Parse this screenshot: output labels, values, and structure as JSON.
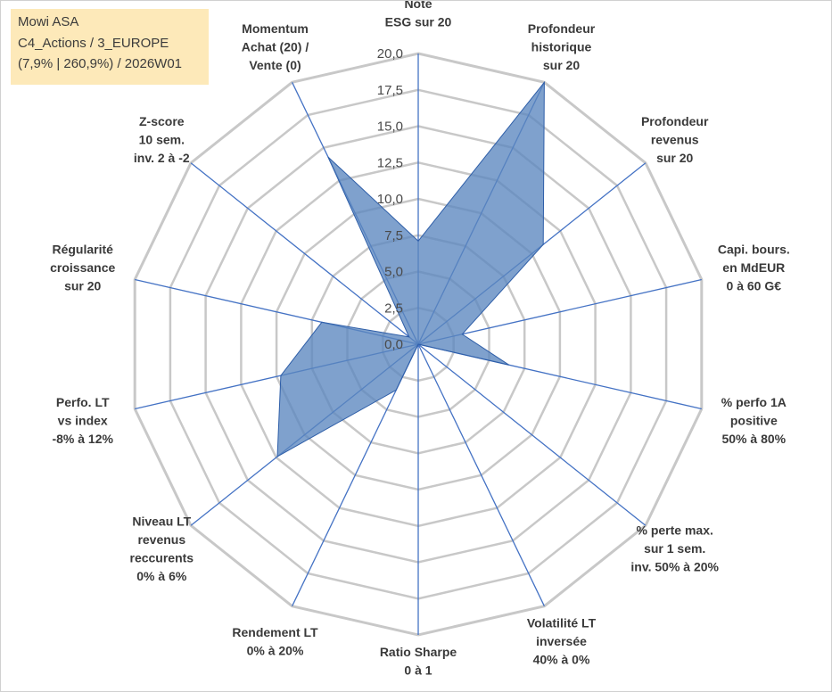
{
  "info": {
    "name": "Mowi ASA",
    "category": "C4_Actions / 3_EUROPE",
    "stats": "(7,9% | 260,9%) / 2026W01"
  },
  "colors": {
    "fill": "#5b86bf",
    "stroke": "#2e5ea8",
    "spoke": "#4472c4",
    "grid": "#c8c8c8",
    "info_bg": "#fde9b9"
  },
  "chart_data": {
    "type": "radar",
    "title": "",
    "rmin": 0,
    "rmax": 20,
    "ticks": [
      "0,0",
      "2,5",
      "5,0",
      "7,5",
      "10,0",
      "12,5",
      "15,0",
      "17,5",
      "20,0"
    ],
    "axes": [
      [
        "Note",
        "ESG sur 20"
      ],
      [
        "Profondeur",
        "historique",
        "sur 20"
      ],
      [
        "Profondeur",
        "revenus",
        "sur 20"
      ],
      [
        "Capi. bours.",
        "en MdEUR",
        "0 à 60 G€"
      ],
      [
        "% perfo 1A",
        "positive",
        "50% à 80%"
      ],
      [
        "% perte max.",
        "sur 1 sem.",
        "inv. 50% à 20%"
      ],
      [
        "Volatilité LT",
        "inversée",
        "40% à 0%"
      ],
      [
        "Ratio Sharpe",
        "0 à 1"
      ],
      [
        "Rendement LT",
        "0% à 20%"
      ],
      [
        "Niveau LT",
        "revenus",
        "reccurents",
        "0% à 6%"
      ],
      [
        "Perfo. LT",
        "vs index",
        "-8% à 12%"
      ],
      [
        "Régularité",
        "croissance",
        "sur 20"
      ],
      [
        "Z-score",
        "10 sem.",
        "inv. 2 à -2"
      ],
      [
        "Momentum",
        "Achat (20) /",
        "Vente (0)"
      ]
    ],
    "series": [
      {
        "name": "Mowi ASA",
        "values": [
          7.1,
          20.0,
          11.0,
          3.1,
          6.4,
          0.0,
          0.0,
          0.0,
          3.5,
          12.4,
          9.7,
          6.8,
          0.8,
          14.3
        ]
      }
    ]
  }
}
